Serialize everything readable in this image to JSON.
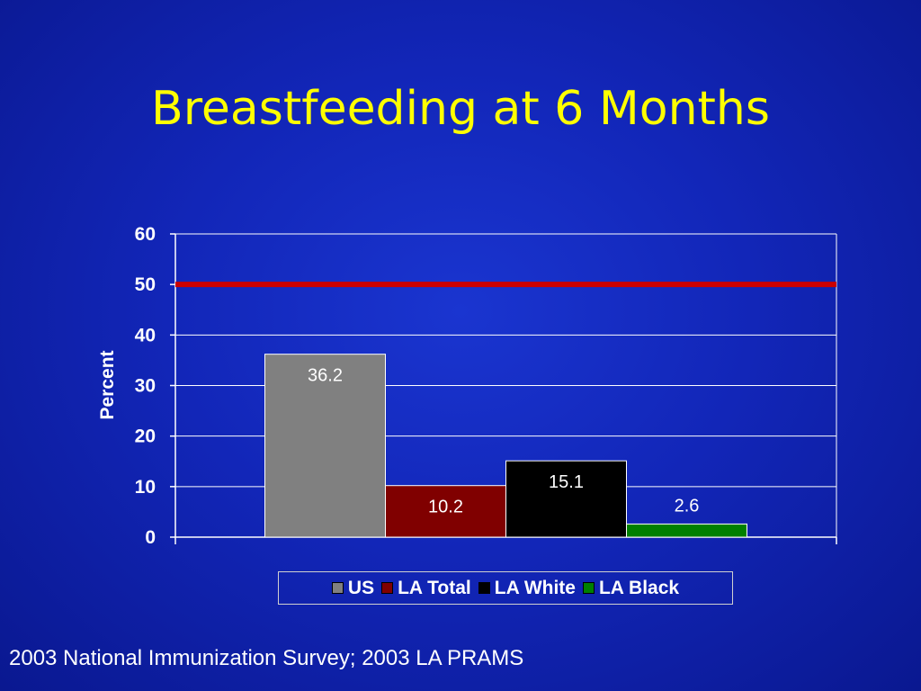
{
  "slide": {
    "title": "Breastfeeding at 6 Months",
    "source": "2003 National Immunization Survey; 2003 LA PRAMS"
  },
  "chart_data": {
    "type": "bar",
    "categories": [
      "US",
      "LA Total",
      "LA White",
      "LA Black"
    ],
    "values": [
      36.2,
      10.2,
      15.1,
      2.6
    ],
    "value_labels": [
      "36.2",
      "10.2",
      "15.1",
      "2.6"
    ],
    "colors": [
      "#808080",
      "#800000",
      "#000000",
      "#008000"
    ],
    "ylabel": "Percent",
    "ylim": [
      0,
      60
    ],
    "yticks": [
      0,
      10,
      20,
      30,
      40,
      50,
      60
    ],
    "grid": true,
    "reference_line": {
      "value": 50,
      "color": "#cc0000"
    },
    "legend": {
      "position": "bottom",
      "entries": [
        {
          "label": "US",
          "color": "#808080"
        },
        {
          "label": "LA Total",
          "color": "#800000"
        },
        {
          "label": "LA White",
          "color": "#000000"
        },
        {
          "label": "LA Black",
          "color": "#008000"
        }
      ]
    }
  }
}
